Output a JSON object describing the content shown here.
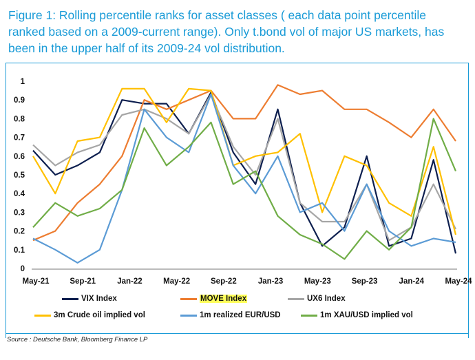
{
  "figure": {
    "title": "Figure 1: Rolling percentile ranks for asset classes ( each data point percentile ranked based on a 2009-current range). Only t.bond vol of major US markets, has been in the upper half of its 2009-24 vol distribution.",
    "source": "Source : Deutsche Bank, Bloomberg Finance LP"
  },
  "chart_data": {
    "type": "line",
    "xlabel": "",
    "ylabel": "",
    "x_ticks": [
      "May-21",
      "Sep-21",
      "Jan-22",
      "May-22",
      "Sep-22",
      "Jan-23",
      "May-23",
      "Sep-23",
      "Jan-24",
      "May-24"
    ],
    "y_ticks": [
      "0",
      "0.1",
      "0.2",
      "0.3",
      "0.4",
      "0.5",
      "0.6",
      "0.7",
      "0.8",
      "0.9",
      "1"
    ],
    "ylim": [
      0,
      1
    ],
    "x": [
      "May-21",
      "Jul-21",
      "Sep-21",
      "Nov-21",
      "Jan-22",
      "Mar-22",
      "May-22",
      "Jul-22",
      "Sep-22",
      "Nov-22",
      "Jan-23",
      "Mar-23",
      "May-23",
      "Jul-23",
      "Sep-23",
      "Nov-23",
      "Jan-24",
      "Mar-24",
      "May-24",
      "Jun-24"
    ],
    "grid": false,
    "legend_position": "bottom",
    "series": [
      {
        "name": "VIX Index",
        "color": "#0d1f4f",
        "values": [
          0.63,
          0.5,
          0.55,
          0.62,
          0.9,
          0.88,
          0.88,
          0.72,
          0.94,
          0.62,
          0.45,
          0.85,
          0.35,
          0.12,
          0.22,
          0.6,
          0.12,
          0.16,
          0.58,
          0.08
        ]
      },
      {
        "name": "MOVE Index",
        "color": "#ed7d31",
        "values": [
          0.15,
          0.2,
          0.35,
          0.45,
          0.6,
          0.9,
          0.85,
          0.9,
          0.95,
          0.8,
          0.8,
          0.98,
          0.93,
          0.95,
          0.85,
          0.85,
          0.78,
          0.7,
          0.85,
          0.68
        ]
      },
      {
        "name": "UX6 Index",
        "color": "#a6a6a6",
        "values": [
          0.66,
          0.55,
          0.62,
          0.66,
          0.82,
          0.85,
          0.8,
          0.72,
          0.93,
          0.65,
          0.5,
          0.8,
          0.35,
          0.25,
          0.25,
          0.45,
          0.15,
          0.22,
          0.45,
          0.21
        ]
      },
      {
        "name": "3m Crude oil implied vol",
        "color": "#ffc000",
        "values": [
          0.6,
          0.4,
          0.68,
          0.7,
          0.96,
          0.96,
          0.78,
          0.96,
          0.95,
          0.55,
          0.6,
          0.62,
          0.72,
          0.3,
          0.6,
          0.55,
          0.35,
          0.28,
          0.65,
          0.18
        ]
      },
      {
        "name": "1m realized EUR/USD",
        "color": "#5b9bd5",
        "values": [
          0.16,
          0.1,
          0.03,
          0.1,
          0.42,
          0.85,
          0.7,
          0.62,
          0.93,
          0.55,
          0.4,
          0.6,
          0.3,
          0.35,
          0.2,
          0.45,
          0.2,
          0.12,
          0.16,
          0.14
        ]
      },
      {
        "name": "1m XAU/USD implied vol",
        "color": "#70ad47",
        "values": [
          0.22,
          0.35,
          0.28,
          0.32,
          0.42,
          0.75,
          0.55,
          0.65,
          0.78,
          0.45,
          0.52,
          0.28,
          0.18,
          0.13,
          0.05,
          0.2,
          0.1,
          0.22,
          0.8,
          0.52
        ]
      }
    ]
  }
}
